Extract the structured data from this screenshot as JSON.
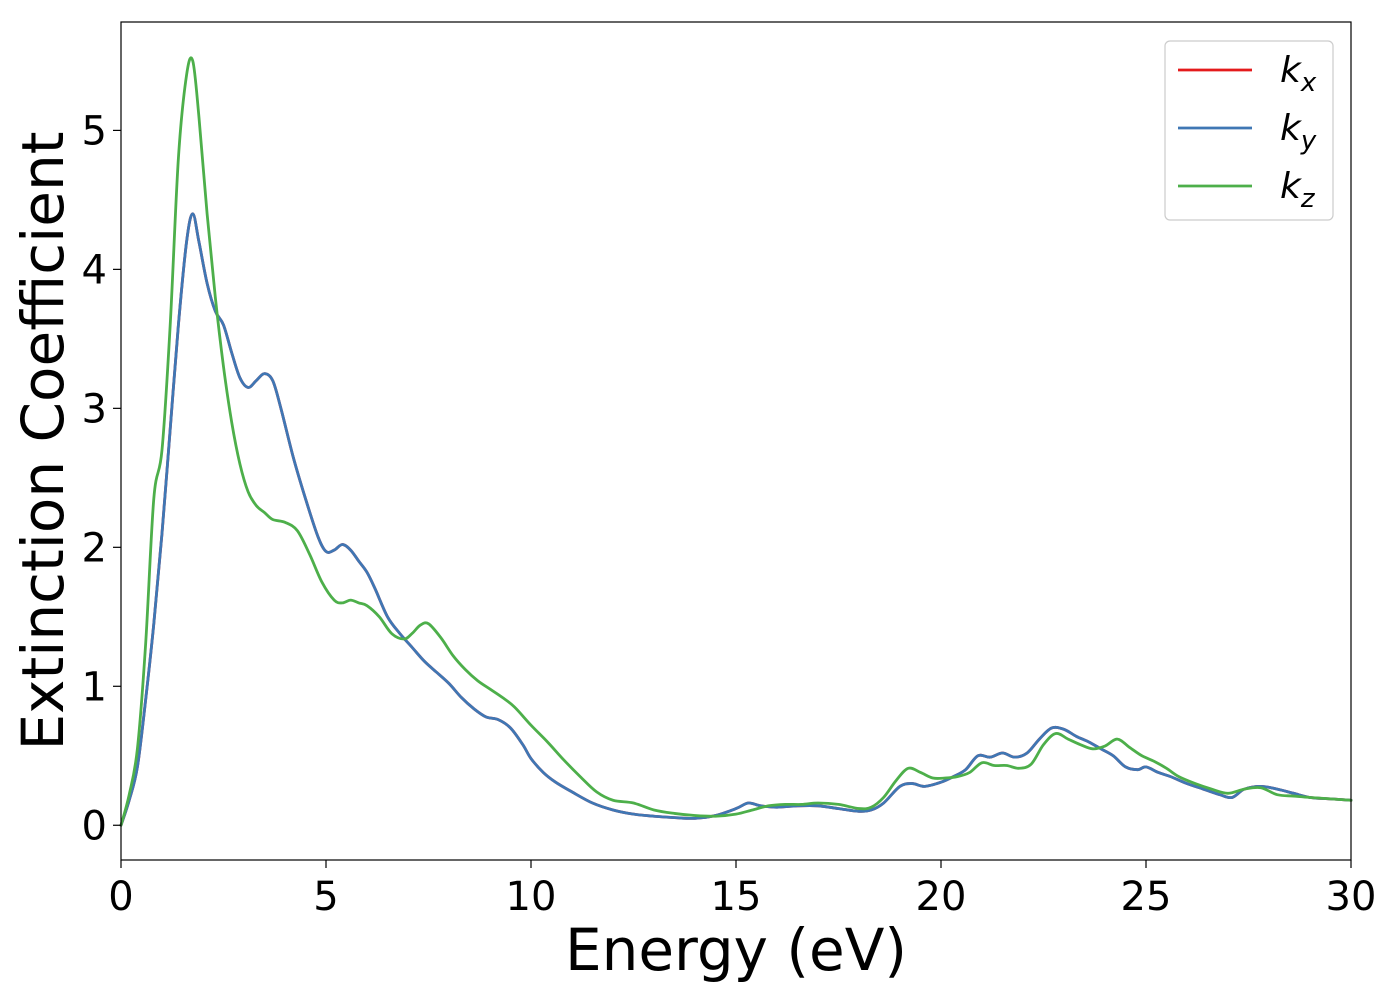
{
  "chart_data": {
    "type": "line",
    "title": "",
    "xlabel": "Energy (eV)",
    "ylabel": "Extinction Coefficient",
    "xlim": [
      0,
      30
    ],
    "ylim": [
      -0.25,
      5.78
    ],
    "x_ticks": [
      0,
      5,
      10,
      15,
      20,
      25,
      30
    ],
    "y_ticks": [
      0,
      1,
      2,
      3,
      4,
      5
    ],
    "grid": false,
    "legend_position": "top-right",
    "series": [
      {
        "name": "k_x",
        "legend_base": "k",
        "legend_sub": "x",
        "color": "#e41a1c",
        "x": [
          0,
          0.2,
          0.4,
          0.6,
          0.8,
          1.0,
          1.2,
          1.4,
          1.6,
          1.75,
          1.9,
          2.1,
          2.3,
          2.5,
          2.7,
          2.9,
          3.1,
          3.3,
          3.5,
          3.7,
          3.9,
          4.2,
          4.5,
          4.8,
          5.0,
          5.2,
          5.4,
          5.6,
          5.8,
          6.0,
          6.2,
          6.5,
          6.8,
          7.1,
          7.4,
          7.7,
          8.0,
          8.3,
          8.6,
          8.9,
          9.2,
          9.5,
          9.8,
          10.0,
          10.3,
          10.6,
          11.0,
          11.5,
          12.0,
          12.5,
          13.0,
          13.5,
          14.0,
          14.5,
          15.0,
          15.3,
          15.6,
          16.0,
          16.5,
          17.0,
          17.5,
          18.0,
          18.3,
          18.6,
          19.0,
          19.3,
          19.6,
          20.0,
          20.3,
          20.6,
          20.9,
          21.2,
          21.5,
          21.8,
          22.1,
          22.4,
          22.7,
          23.0,
          23.3,
          23.6,
          23.9,
          24.2,
          24.5,
          24.8,
          25.0,
          25.3,
          25.6,
          26.0,
          26.4,
          26.8,
          27.1,
          27.4,
          27.8,
          28.2,
          28.6,
          29.0,
          29.5,
          30.0
        ],
        "values": [
          0.0,
          0.18,
          0.42,
          0.9,
          1.45,
          2.1,
          2.85,
          3.6,
          4.2,
          4.4,
          4.2,
          3.9,
          3.7,
          3.6,
          3.4,
          3.22,
          3.15,
          3.2,
          3.25,
          3.2,
          3.0,
          2.65,
          2.35,
          2.08,
          1.97,
          1.98,
          2.02,
          1.98,
          1.9,
          1.82,
          1.7,
          1.5,
          1.38,
          1.28,
          1.18,
          1.1,
          1.02,
          0.92,
          0.84,
          0.78,
          0.76,
          0.7,
          0.58,
          0.48,
          0.38,
          0.31,
          0.24,
          0.16,
          0.11,
          0.08,
          0.065,
          0.055,
          0.05,
          0.07,
          0.12,
          0.16,
          0.14,
          0.13,
          0.14,
          0.14,
          0.12,
          0.1,
          0.11,
          0.16,
          0.28,
          0.3,
          0.28,
          0.31,
          0.35,
          0.4,
          0.5,
          0.49,
          0.52,
          0.49,
          0.52,
          0.62,
          0.7,
          0.69,
          0.64,
          0.6,
          0.55,
          0.5,
          0.42,
          0.4,
          0.42,
          0.38,
          0.35,
          0.3,
          0.26,
          0.22,
          0.2,
          0.26,
          0.28,
          0.26,
          0.23,
          0.2,
          0.19,
          0.18
        ]
      },
      {
        "name": "k_y",
        "legend_base": "k",
        "legend_sub": "y",
        "color": "#3f77b4",
        "x": [
          0,
          0.2,
          0.4,
          0.6,
          0.8,
          1.0,
          1.2,
          1.4,
          1.6,
          1.75,
          1.9,
          2.1,
          2.3,
          2.5,
          2.7,
          2.9,
          3.1,
          3.3,
          3.5,
          3.7,
          3.9,
          4.2,
          4.5,
          4.8,
          5.0,
          5.2,
          5.4,
          5.6,
          5.8,
          6.0,
          6.2,
          6.5,
          6.8,
          7.1,
          7.4,
          7.7,
          8.0,
          8.3,
          8.6,
          8.9,
          9.2,
          9.5,
          9.8,
          10.0,
          10.3,
          10.6,
          11.0,
          11.5,
          12.0,
          12.5,
          13.0,
          13.5,
          14.0,
          14.5,
          15.0,
          15.3,
          15.6,
          16.0,
          16.5,
          17.0,
          17.5,
          18.0,
          18.3,
          18.6,
          19.0,
          19.3,
          19.6,
          20.0,
          20.3,
          20.6,
          20.9,
          21.2,
          21.5,
          21.8,
          22.1,
          22.4,
          22.7,
          23.0,
          23.3,
          23.6,
          23.9,
          24.2,
          24.5,
          24.8,
          25.0,
          25.3,
          25.6,
          26.0,
          26.4,
          26.8,
          27.1,
          27.4,
          27.8,
          28.2,
          28.6,
          29.0,
          29.5,
          30.0
        ],
        "values": [
          0.0,
          0.18,
          0.42,
          0.9,
          1.45,
          2.1,
          2.85,
          3.6,
          4.2,
          4.4,
          4.2,
          3.9,
          3.7,
          3.6,
          3.4,
          3.22,
          3.15,
          3.2,
          3.25,
          3.2,
          3.0,
          2.65,
          2.35,
          2.08,
          1.97,
          1.98,
          2.02,
          1.98,
          1.9,
          1.82,
          1.7,
          1.5,
          1.38,
          1.28,
          1.18,
          1.1,
          1.02,
          0.92,
          0.84,
          0.78,
          0.76,
          0.7,
          0.58,
          0.48,
          0.38,
          0.31,
          0.24,
          0.16,
          0.11,
          0.08,
          0.065,
          0.055,
          0.05,
          0.07,
          0.12,
          0.16,
          0.14,
          0.13,
          0.14,
          0.14,
          0.12,
          0.1,
          0.11,
          0.16,
          0.28,
          0.3,
          0.28,
          0.31,
          0.35,
          0.4,
          0.5,
          0.49,
          0.52,
          0.49,
          0.52,
          0.62,
          0.7,
          0.69,
          0.64,
          0.6,
          0.55,
          0.5,
          0.42,
          0.4,
          0.42,
          0.38,
          0.35,
          0.3,
          0.26,
          0.22,
          0.2,
          0.26,
          0.28,
          0.26,
          0.23,
          0.2,
          0.19,
          0.18
        ]
      },
      {
        "name": "k_z",
        "legend_base": "k",
        "legend_sub": "z",
        "color": "#4daf4a",
        "x": [
          0,
          0.2,
          0.4,
          0.6,
          0.8,
          1.0,
          1.2,
          1.4,
          1.6,
          1.75,
          1.9,
          2.1,
          2.3,
          2.5,
          2.7,
          2.9,
          3.1,
          3.3,
          3.5,
          3.7,
          4.0,
          4.3,
          4.6,
          4.9,
          5.2,
          5.4,
          5.6,
          5.8,
          6.0,
          6.3,
          6.6,
          6.9,
          7.1,
          7.3,
          7.5,
          7.8,
          8.1,
          8.4,
          8.7,
          9.0,
          9.3,
          9.6,
          10.0,
          10.4,
          10.8,
          11.2,
          11.6,
          12.0,
          12.5,
          13.0,
          13.5,
          14.0,
          14.5,
          15.0,
          15.4,
          15.8,
          16.2,
          16.6,
          17.0,
          17.5,
          18.0,
          18.3,
          18.6,
          18.9,
          19.2,
          19.5,
          19.8,
          20.1,
          20.4,
          20.7,
          21.0,
          21.3,
          21.6,
          21.9,
          22.2,
          22.5,
          22.8,
          23.1,
          23.4,
          23.7,
          24.0,
          24.3,
          24.6,
          24.9,
          25.2,
          25.5,
          25.8,
          26.2,
          26.6,
          27.0,
          27.4,
          27.8,
          28.2,
          28.6,
          29.0,
          29.5,
          30.0
        ],
        "values": [
          0.0,
          0.22,
          0.55,
          1.3,
          2.35,
          2.7,
          3.6,
          4.8,
          5.4,
          5.5,
          5.1,
          4.4,
          3.8,
          3.3,
          2.9,
          2.6,
          2.4,
          2.3,
          2.25,
          2.2,
          2.18,
          2.12,
          1.95,
          1.75,
          1.62,
          1.6,
          1.62,
          1.6,
          1.58,
          1.5,
          1.38,
          1.34,
          1.38,
          1.44,
          1.45,
          1.35,
          1.22,
          1.12,
          1.04,
          0.98,
          0.92,
          0.85,
          0.72,
          0.6,
          0.47,
          0.35,
          0.24,
          0.18,
          0.16,
          0.11,
          0.085,
          0.07,
          0.065,
          0.08,
          0.11,
          0.14,
          0.15,
          0.15,
          0.16,
          0.15,
          0.12,
          0.13,
          0.2,
          0.32,
          0.41,
          0.38,
          0.34,
          0.34,
          0.35,
          0.38,
          0.45,
          0.43,
          0.43,
          0.41,
          0.44,
          0.58,
          0.66,
          0.62,
          0.58,
          0.55,
          0.57,
          0.62,
          0.56,
          0.5,
          0.46,
          0.41,
          0.35,
          0.3,
          0.26,
          0.23,
          0.26,
          0.27,
          0.22,
          0.21,
          0.2,
          0.19,
          0.18
        ]
      }
    ]
  }
}
